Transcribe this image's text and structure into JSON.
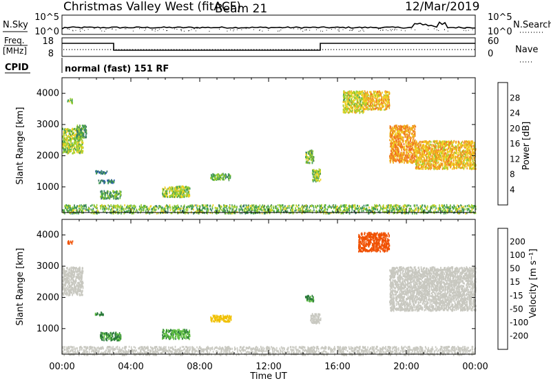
{
  "header": {
    "station": "Christmas Valley West (fitACF)",
    "beam": "Beam 21",
    "date": "12/Mar/2019"
  },
  "meta_panel": {
    "nsky_label": "N.Sky",
    "nsearch_label": "N.Search",
    "noise_ticks_left": [
      "10^5",
      "10^0"
    ],
    "noise_ticks_right": [
      "10^5",
      "10^0"
    ],
    "freq_label_line1": "Freq.",
    "freq_label_line2": "[MHz]",
    "freq_ticks": [
      "18",
      "8"
    ],
    "nave_label": "Nave",
    "nave_ticks": [
      "60",
      "0"
    ],
    "cpid_label": "CPID",
    "cpid_text": "normal (fast) 151 RF"
  },
  "colors": {
    "power": [
      "#1020f0",
      "#2050b0",
      "#3a7a6a",
      "#44a050",
      "#9ad030",
      "#f0d020",
      "#f0a020",
      "#f07020",
      "#e83010",
      "#ff0000"
    ],
    "velocity": [
      "#1820b0",
      "#3070c0",
      "#2a7a3a",
      "#60c040",
      "#c8c8c0",
      "#c8c8c0",
      "#f0c000",
      "#f09000",
      "#f05000",
      "#ff0000"
    ]
  },
  "chart_data": [
    {
      "type": "heatmap",
      "name": "power",
      "xlabel": "",
      "ylabel": "Slant Range [km]",
      "colorbar_label": "Power [dB]",
      "colorbar_ticks": [
        "4",
        "8",
        "12",
        "16",
        "20",
        "24",
        "28"
      ],
      "xlim": [
        "00:00",
        "24:00"
      ],
      "ylim": [
        180,
        4500
      ],
      "y_ticks": [
        "1000",
        "2000",
        "3000",
        "4000"
      ],
      "echo_regions": [
        {
          "t0": 0.0,
          "t1": 1.2,
          "r0": 2100,
          "r1": 2900,
          "db": 14
        },
        {
          "t0": 0.8,
          "t1": 1.4,
          "r0": 2600,
          "r1": 3000,
          "db": 10
        },
        {
          "t0": 0.3,
          "t1": 0.6,
          "r0": 3700,
          "r1": 3850,
          "db": 12
        },
        {
          "t0": 1.9,
          "t1": 2.6,
          "r0": 1450,
          "r1": 1550,
          "db": 8
        },
        {
          "t0": 2.1,
          "t1": 3.1,
          "r0": 1150,
          "r1": 1250,
          "db": 8
        },
        {
          "t0": 2.2,
          "t1": 3.4,
          "r0": 650,
          "r1": 900,
          "db": 10
        },
        {
          "t0": 5.8,
          "t1": 7.4,
          "r0": 700,
          "r1": 1050,
          "db": 14
        },
        {
          "t0": 8.6,
          "t1": 9.8,
          "r0": 1250,
          "r1": 1450,
          "db": 11
        },
        {
          "t0": 14.1,
          "t1": 14.6,
          "r0": 1800,
          "r1": 2200,
          "db": 12
        },
        {
          "t0": 14.5,
          "t1": 15.0,
          "r0": 1200,
          "r1": 1600,
          "db": 14
        },
        {
          "t0": 16.3,
          "t1": 17.5,
          "r0": 3400,
          "r1": 4100,
          "db": 15
        },
        {
          "t0": 17.5,
          "t1": 19.0,
          "r0": 3500,
          "r1": 4100,
          "db": 18
        },
        {
          "t0": 19.0,
          "t1": 20.5,
          "r0": 1800,
          "r1": 3000,
          "db": 20
        },
        {
          "t0": 20.5,
          "t1": 24.0,
          "r0": 1600,
          "r1": 2500,
          "db": 18
        }
      ],
      "ground_scatter_band": {
        "t0": 0.0,
        "t1": 24.0,
        "r0": 180,
        "r1": 450,
        "db": 12
      }
    },
    {
      "type": "heatmap",
      "name": "velocity",
      "xlabel": "Time UT",
      "ylabel": "Slant Range [km]",
      "colorbar_label": "Velocity [m s⁻¹]",
      "colorbar_ticks": [
        "-200",
        "-100",
        "-50",
        "-15",
        "15",
        "50",
        "100",
        "200"
      ],
      "xlim": [
        "00:00",
        "24:00"
      ],
      "x_ticks": [
        "00:00",
        "04:00",
        "08:00",
        "12:00",
        "16:00",
        "20:00",
        "00:00"
      ],
      "ylim": [
        180,
        4500
      ],
      "y_ticks": [
        "1000",
        "2000",
        "3000",
        "4000"
      ],
      "echo_regions": [
        {
          "t0": 0.0,
          "t1": 1.2,
          "r0": 2100,
          "r1": 3000,
          "vel": 0
        },
        {
          "t0": 0.3,
          "t1": 0.6,
          "r0": 3750,
          "r1": 3850,
          "vel": -220
        },
        {
          "t0": 1.9,
          "t1": 2.4,
          "r0": 1450,
          "r1": 1550,
          "vel": 60
        },
        {
          "t0": 2.2,
          "t1": 3.4,
          "r0": 650,
          "r1": 900,
          "vel": 55
        },
        {
          "t0": 5.8,
          "t1": 7.4,
          "r0": 700,
          "r1": 1000,
          "vel": 45
        },
        {
          "t0": 8.6,
          "t1": 9.8,
          "r0": 1250,
          "r1": 1450,
          "vel": -80
        },
        {
          "t0": 14.1,
          "t1": 14.6,
          "r0": 1900,
          "r1": 2100,
          "vel": 60
        },
        {
          "t0": 14.4,
          "t1": 15.0,
          "r0": 1200,
          "r1": 1500,
          "vel": 0
        },
        {
          "t0": 17.2,
          "t1": 19.0,
          "r0": 3500,
          "r1": 4100,
          "vel": -220
        },
        {
          "t0": 19.0,
          "t1": 24.0,
          "r0": 1600,
          "r1": 3000,
          "vel": 0
        }
      ],
      "ground_scatter_band": {
        "t0": 0.0,
        "t1": 24.0,
        "r0": 180,
        "r1": 450,
        "vel": -30
      }
    }
  ]
}
